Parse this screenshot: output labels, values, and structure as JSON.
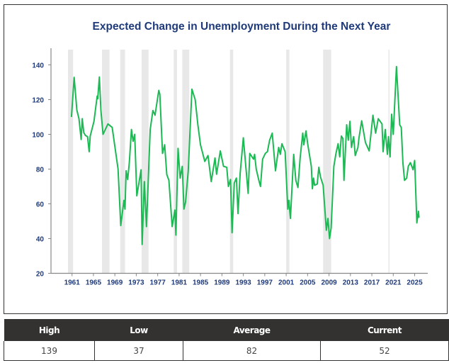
{
  "chart_data": {
    "type": "line",
    "title": "Expected Change in Unemployment During the Next Year",
    "xlabel": "",
    "ylabel": "",
    "ylim": [
      20,
      150
    ],
    "xlim": [
      1959.8,
      2027.5
    ],
    "yticks": [
      20,
      40,
      60,
      80,
      100,
      120,
      140
    ],
    "xticks": [
      1961,
      1965,
      1969,
      1973,
      1977,
      1981,
      1985,
      1989,
      1993,
      1997,
      2001,
      2005,
      2009,
      2013,
      2017,
      2021,
      2025
    ],
    "grid": false,
    "line_color": "#1db954",
    "band_color": "#e8e8e8",
    "axis_label_color": "#1f3a7a",
    "shaded_periods": [
      [
        1960.25,
        1961.2
      ],
      [
        1966.6,
        1968.0
      ],
      [
        1970.0,
        1970.9
      ],
      [
        1974.0,
        1975.3
      ],
      [
        1980.0,
        1980.6
      ],
      [
        1981.6,
        1982.9
      ],
      [
        1990.5,
        1991.1
      ],
      [
        2001.0,
        2001.6
      ],
      [
        2007.9,
        2009.4
      ],
      [
        2020.1,
        2020.3
      ]
    ],
    "series": [
      {
        "points": [
          [
            1960.9,
            110
          ],
          [
            1961.4,
            132.8
          ],
          [
            1961.9,
            114
          ],
          [
            1962.3,
            109
          ],
          [
            1962.7,
            97
          ],
          [
            1962.9,
            109
          ],
          [
            1963.2,
            101
          ],
          [
            1963.5,
            99.4
          ],
          [
            1963.9,
            98.7
          ],
          [
            1964.2,
            90
          ],
          [
            1964.4,
            99
          ],
          [
            1965.1,
            107.5
          ],
          [
            1965.7,
            122
          ],
          [
            1965.8,
            120.5
          ],
          [
            1966.1,
            133
          ],
          [
            1966.4,
            113.7
          ],
          [
            1966.8,
            100
          ],
          [
            1967.7,
            106
          ],
          [
            1968.5,
            104
          ],
          [
            1969.6,
            80
          ],
          [
            1970.1,
            47.5
          ],
          [
            1970.7,
            62
          ],
          [
            1970.9,
            57
          ],
          [
            1971.1,
            79
          ],
          [
            1971.4,
            74
          ],
          [
            1971.7,
            83.7
          ],
          [
            1972.1,
            102.8
          ],
          [
            1972.4,
            96
          ],
          [
            1972.7,
            100
          ],
          [
            1973.1,
            64.6
          ],
          [
            1973.9,
            79.6
          ],
          [
            1974.1,
            36.6
          ],
          [
            1974.5,
            72.8
          ],
          [
            1974.9,
            46.9
          ],
          [
            1975.6,
            102.8
          ],
          [
            1976.1,
            113.7
          ],
          [
            1976.5,
            111
          ],
          [
            1977.2,
            125.3
          ],
          [
            1977.4,
            123
          ],
          [
            1977.9,
            89
          ],
          [
            1978.3,
            94
          ],
          [
            1978.7,
            76.9
          ],
          [
            1979.1,
            73.5
          ],
          [
            1979.7,
            46.9
          ],
          [
            1980.2,
            56.4
          ],
          [
            1980.4,
            42
          ],
          [
            1980.8,
            91.9
          ],
          [
            1981.2,
            74.8
          ],
          [
            1981.6,
            81.6
          ],
          [
            1981.9,
            57
          ],
          [
            1982.2,
            61
          ],
          [
            1982.7,
            79
          ],
          [
            1983.4,
            126
          ],
          [
            1984.0,
            120
          ],
          [
            1984.5,
            105.5
          ],
          [
            1985.0,
            94
          ],
          [
            1985.8,
            84.4
          ],
          [
            1986.4,
            87.8
          ],
          [
            1987.0,
            72.8
          ],
          [
            1987.7,
            86.4
          ],
          [
            1988.0,
            77
          ],
          [
            1988.7,
            90.5
          ],
          [
            1989.3,
            81.6
          ],
          [
            1989.9,
            81
          ],
          [
            1990.2,
            70
          ],
          [
            1990.6,
            74
          ],
          [
            1990.9,
            43.4
          ],
          [
            1991.3,
            72
          ],
          [
            1991.7,
            74.8
          ],
          [
            1992.0,
            54.4
          ],
          [
            1992.4,
            77.5
          ],
          [
            1993.0,
            98
          ],
          [
            1993.9,
            66
          ],
          [
            1994.2,
            89
          ],
          [
            1994.9,
            85.7
          ],
          [
            1995.1,
            88.5
          ],
          [
            1995.4,
            80
          ],
          [
            1995.9,
            73.5
          ],
          [
            1996.2,
            70
          ],
          [
            1996.6,
            85.7
          ],
          [
            1997.1,
            89
          ],
          [
            1997.5,
            90
          ],
          [
            1997.9,
            96.6
          ],
          [
            1998.4,
            100.7
          ],
          [
            1999.0,
            79
          ],
          [
            1999.6,
            92.5
          ],
          [
            1999.9,
            88.5
          ],
          [
            2000.2,
            94.6
          ],
          [
            2000.8,
            90
          ],
          [
            2001.3,
            57
          ],
          [
            2001.5,
            62
          ],
          [
            2001.8,
            51.6
          ],
          [
            2002.4,
            88.5
          ],
          [
            2002.8,
            73.5
          ],
          [
            2003.2,
            69.4
          ],
          [
            2003.6,
            86.4
          ],
          [
            2004.1,
            100.7
          ],
          [
            2004.3,
            94
          ],
          [
            2004.7,
            102
          ],
          [
            2005.0,
            95
          ],
          [
            2005.7,
            81.6
          ],
          [
            2005.9,
            68.7
          ],
          [
            2006.1,
            74.8
          ],
          [
            2006.3,
            70.7
          ],
          [
            2006.8,
            71.4
          ],
          [
            2007.1,
            81
          ],
          [
            2007.4,
            75.5
          ],
          [
            2007.9,
            70.7
          ],
          [
            2008.5,
            44.8
          ],
          [
            2008.8,
            51.6
          ],
          [
            2009.1,
            40
          ],
          [
            2009.4,
            46.2
          ],
          [
            2009.9,
            81.6
          ],
          [
            2010.3,
            89
          ],
          [
            2010.7,
            94.6
          ],
          [
            2011.0,
            87
          ],
          [
            2011.3,
            99
          ],
          [
            2011.6,
            97.6
          ],
          [
            2011.8,
            73.5
          ],
          [
            2012.3,
            105.5
          ],
          [
            2012.6,
            96.6
          ],
          [
            2012.9,
            107.5
          ],
          [
            2013.2,
            92.5
          ],
          [
            2013.6,
            98.7
          ],
          [
            2013.9,
            87.8
          ],
          [
            2014.4,
            92.5
          ],
          [
            2014.6,
            98
          ],
          [
            2015.1,
            107.8
          ],
          [
            2015.8,
            95.3
          ],
          [
            2016.5,
            90.5
          ],
          [
            2017.2,
            111
          ],
          [
            2017.7,
            100.7
          ],
          [
            2018.2,
            109
          ],
          [
            2018.9,
            106
          ],
          [
            2019.1,
            90
          ],
          [
            2019.5,
            102.8
          ],
          [
            2019.9,
            88.5
          ],
          [
            2020.1,
            98.7
          ],
          [
            2020.4,
            87
          ],
          [
            2020.7,
            111.6
          ],
          [
            2021.0,
            100
          ],
          [
            2021.6,
            139
          ],
          [
            2022.2,
            105.5
          ],
          [
            2022.5,
            104
          ],
          [
            2022.8,
            83.7
          ],
          [
            2023.1,
            73.5
          ],
          [
            2023.5,
            74.8
          ],
          [
            2023.8,
            81.6
          ],
          [
            2024.2,
            83.7
          ],
          [
            2024.7,
            79.6
          ],
          [
            2025.0,
            85
          ],
          [
            2025.4,
            49
          ],
          [
            2025.7,
            55.7
          ],
          [
            2025.8,
            52
          ]
        ]
      }
    ]
  },
  "summary": {
    "headers": [
      "High",
      "Low",
      "Average",
      "Current"
    ],
    "values": [
      "139",
      "37",
      "82",
      "52"
    ]
  }
}
